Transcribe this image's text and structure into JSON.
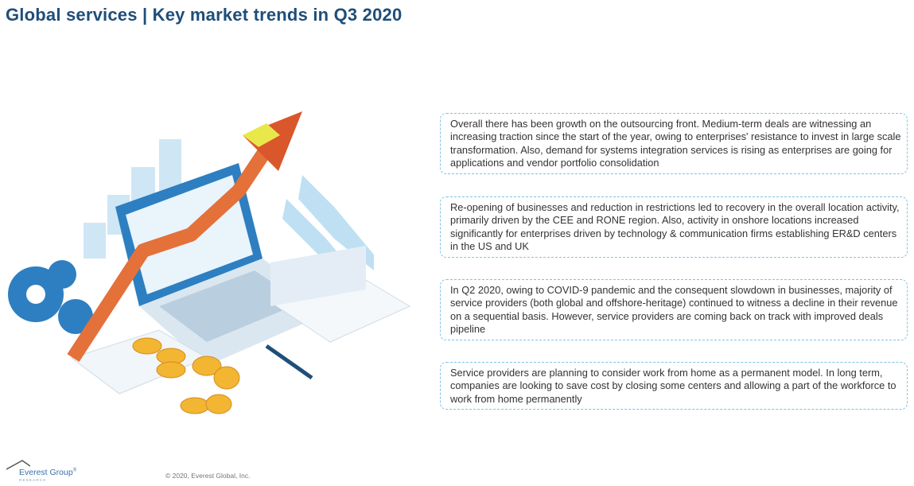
{
  "header": {
    "title": "Global services | Key market trends in Q3 2020"
  },
  "trends": [
    "Overall there has been growth on the outsourcing front. Medium-term deals are witnessing an increasing traction since the start of the year, owing to enterprises' resistance to invest in large scale transformation. Also, demand for systems integration services is rising as enterprises are going for applications and vendor portfolio consolidation",
    "Re-opening of businesses and reduction in restrictions led to recovery in the overall location activity, primarily driven by the CEE and RONE region. Also, activity in onshore locations increased significantly for enterprises driven by technology & communication firms establishing ER&D centers in the US and UK",
    "In Q2 2020, owing to COVID-9 pandemic and the consequent slowdown in businesses, majority of service providers (both global and offshore-heritage) continued to witness a decline in their revenue on a sequential basis. However, service providers are coming back on track with improved deals pipeline",
    "Service providers are planning to consider work from home as a permanent model. In long term, companies are looking to save cost by closing some centers and allowing a part of the workforce to work from home permanently"
  ],
  "footer": {
    "logo_name": "Everest Group",
    "logo_mark": "®",
    "logo_sub": "RESEARCH",
    "copyright": "© 2020, Everest Global, Inc."
  },
  "colors": {
    "title": "#1f4e79",
    "box_border": "#7ec3e6",
    "arrow": "#e4703a",
    "arrow_tip": "#e8e84a",
    "laptop": "#2d7fc1"
  }
}
